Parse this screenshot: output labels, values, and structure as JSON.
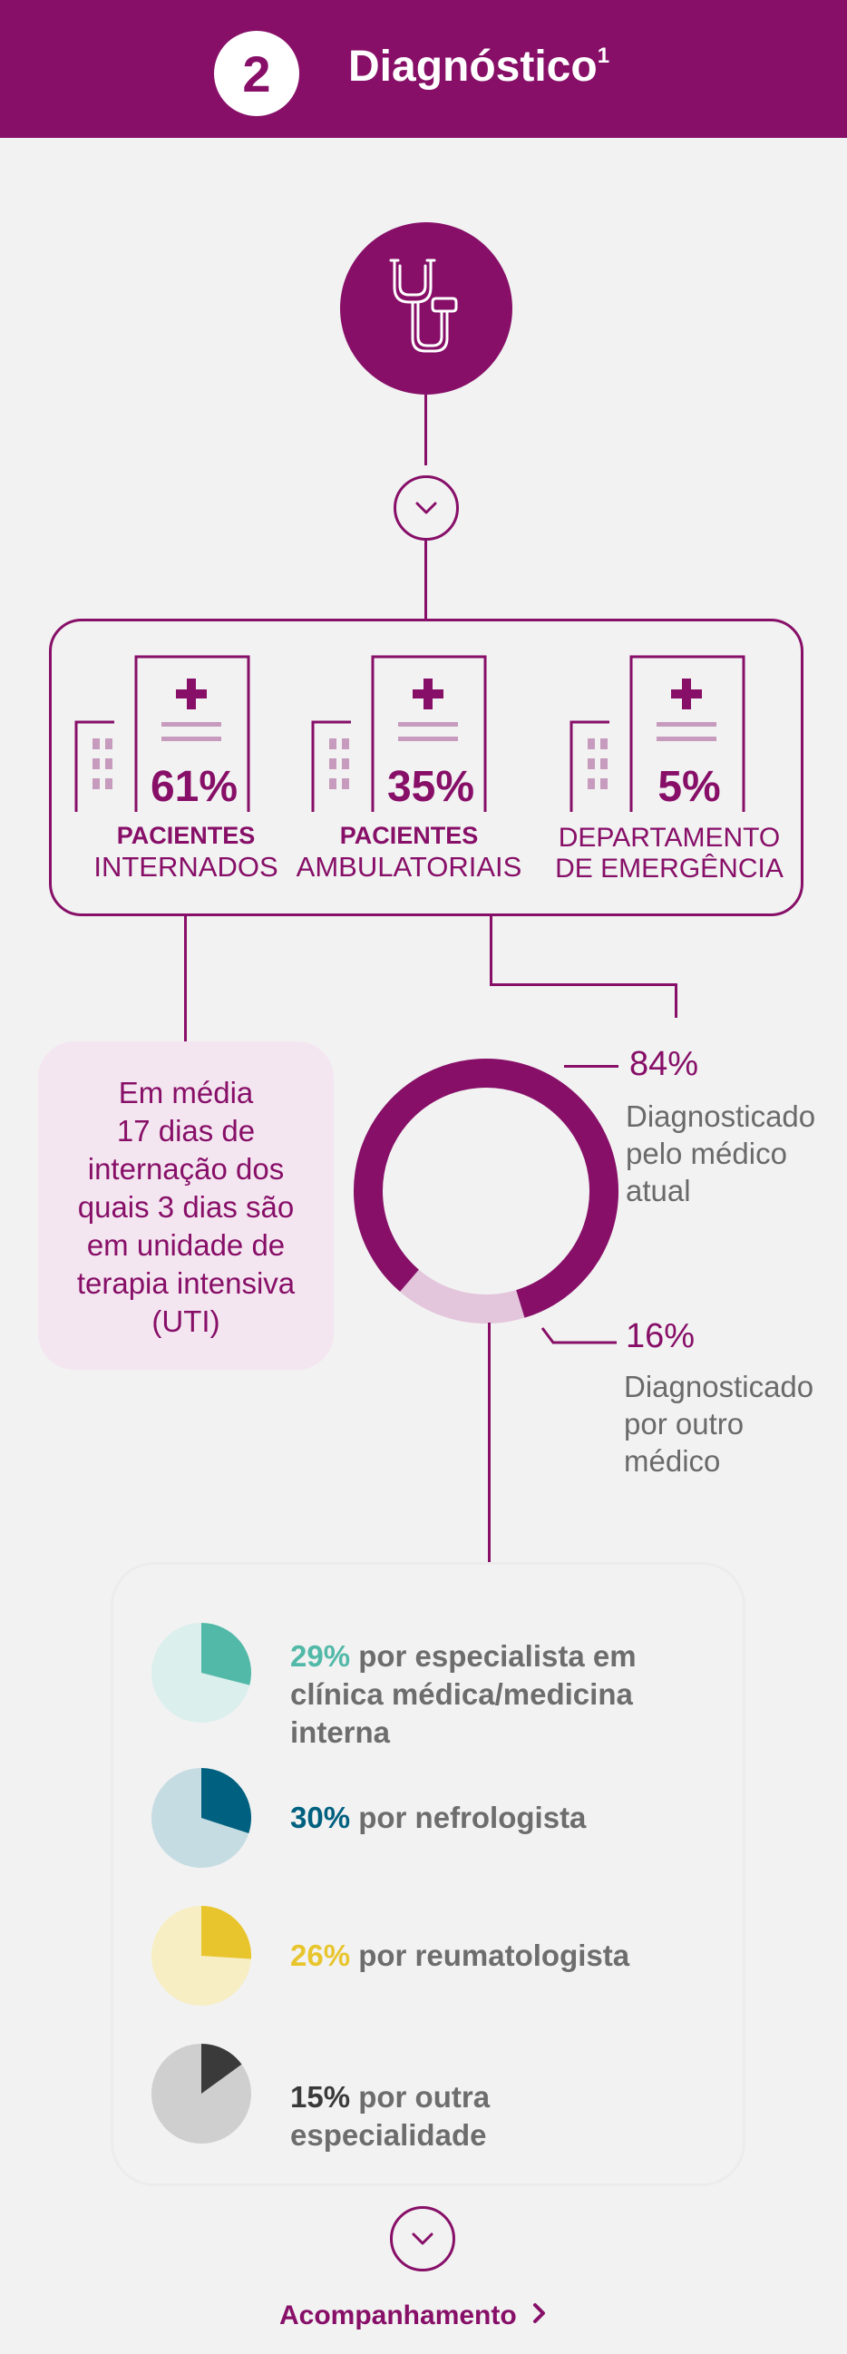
{
  "header": {
    "step_number": "2",
    "title": "Diagnóstico",
    "footnote": "1"
  },
  "colors": {
    "brand": "#870f68",
    "brand_light": "#f4e6f0",
    "donut_light": "#e3c5dc",
    "teal": "#52b9a8",
    "dark_blue": "#00607f",
    "yellow": "#e8c52d",
    "dark_gray": "#3a3a3a"
  },
  "care_settings": [
    {
      "pct": "61%",
      "label_bold": "PACIENTES",
      "label_regular": "INTERNADOS"
    },
    {
      "pct": "35%",
      "label_bold": "PACIENTES",
      "label_regular": "AMBULATORIAIS"
    },
    {
      "pct": "5%",
      "label_line1": "DEPARTAMENTO",
      "label_line2": "DE EMERGÊNCIA"
    }
  ],
  "average_stay": {
    "lines": [
      "Em média",
      "17 dias de",
      "internação dos",
      "quais 3 dias são",
      "em unidade de",
      "terapia intensiva",
      "(UTI)"
    ]
  },
  "diagnosis": {
    "current": {
      "pct": "84%",
      "value": 84,
      "lines": [
        "Diagnosticado",
        "pelo médico",
        "atual"
      ]
    },
    "other": {
      "pct": "16%",
      "value": 16,
      "lines": [
        "Diagnosticado",
        "por outro",
        "médico"
      ]
    }
  },
  "specialties": [
    {
      "pct": "29%",
      "value": 29,
      "text": "por especialista em clínica médica/medicina interna",
      "color": "#52b9a8",
      "bg": "#dbefec"
    },
    {
      "pct": "30%",
      "value": 30,
      "text": "por nefrologista",
      "color": "#00607f",
      "bg": "#c5dce3"
    },
    {
      "pct": "26%",
      "value": 26,
      "text": "por reumatologista",
      "color": "#e8c52d",
      "bg": "#f7eec4"
    },
    {
      "pct": "15%",
      "value": 15,
      "text": "por outra especialidade",
      "color": "#3a3a3a",
      "bg": "#cfcfcf"
    }
  ],
  "footer": {
    "next_label": "Acompanhamento",
    "next_icon": "chevron-right-icon"
  }
}
